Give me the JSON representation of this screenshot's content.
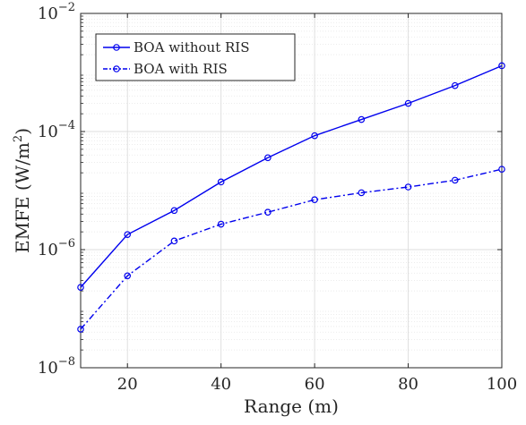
{
  "chart_data": {
    "type": "line",
    "title": "",
    "xlabel": "Range (m)",
    "ylabel": "EMFE (W/m",
    "ylabel_superscript": "2",
    "ylabel_close": ")",
    "xscale": "linear",
    "yscale": "log",
    "xlim": [
      10,
      100
    ],
    "ylim": [
      1e-08,
      0.01
    ],
    "x_ticks": [
      20,
      40,
      60,
      80,
      100
    ],
    "x_tick_labels": [
      "20",
      "40",
      "60",
      "80",
      "100"
    ],
    "y_ticks": [
      1e-08,
      1e-06,
      0.0001,
      0.01
    ],
    "y_tick_labels": [
      {
        "base": "10",
        "exp": "−8"
      },
      {
        "base": "10",
        "exp": "−6"
      },
      {
        "base": "10",
        "exp": "−4"
      },
      {
        "base": "10",
        "exp": "−2"
      }
    ],
    "grid": true,
    "minor_grid": true,
    "legend_position": "top-left",
    "x": [
      10,
      20,
      30,
      40,
      50,
      60,
      70,
      80,
      90,
      100
    ],
    "series": [
      {
        "name": "BOA without RIS",
        "color": "#0000ee",
        "line_style": "solid",
        "marker": "circle",
        "values": [
          2.3e-07,
          1.8e-06,
          4.6e-06,
          1.4e-05,
          3.6e-05,
          8.5e-05,
          0.00016,
          0.0003,
          0.0006,
          0.0013
        ]
      },
      {
        "name": "BOA with RIS",
        "color": "#0000ee",
        "line_style": "dashdot",
        "marker": "circle",
        "values": [
          4.5e-08,
          3.6e-07,
          1.4e-06,
          2.7e-06,
          4.3e-06,
          7e-06,
          9.2e-06,
          1.15e-05,
          1.5e-05,
          2.3e-05
        ]
      }
    ]
  }
}
